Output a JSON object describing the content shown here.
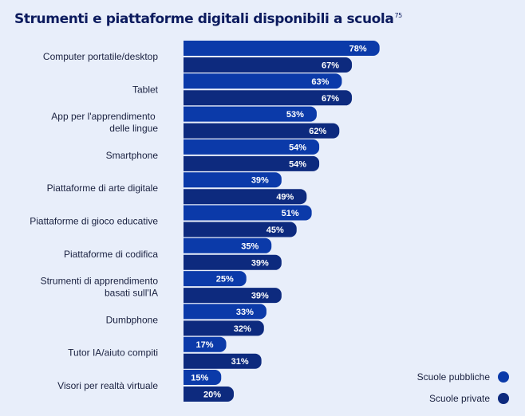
{
  "title": "Strumenti e piattaforme digitali disponibili a scuola",
  "footnote": "75",
  "colors": {
    "public": "#0b3aa9",
    "private": "#0d2a7e",
    "background": "#e8eefa"
  },
  "legend": {
    "items": [
      {
        "label": "Scuole pubbliche",
        "color": "#0b3aa9"
      },
      {
        "label": "Scuole private",
        "color": "#0d2a7e"
      }
    ],
    "placement": "bottom-right"
  },
  "chart_data": {
    "type": "bar",
    "orientation": "horizontal",
    "categories": [
      "Computer portatile/desktop",
      "Tablet",
      "App per l'apprendimento \ndelle lingue",
      "Smartphone",
      "Piattaforme di arte digitale",
      "Piattaforme di gioco educative",
      "Piattaforme di codifica",
      "Strumenti di apprendimento\nbasati sull'IA",
      "Dumbphone",
      "Tutor IA/aiuto compiti",
      "Visori per realtà virtuale"
    ],
    "series": [
      {
        "name": "Scuole pubbliche",
        "values": [
          78,
          63,
          53,
          54,
          39,
          51,
          35,
          25,
          33,
          17,
          15
        ]
      },
      {
        "name": "Scuole private",
        "values": [
          67,
          67,
          62,
          54,
          49,
          45,
          39,
          39,
          32,
          31,
          20
        ]
      }
    ],
    "value_suffix": "%",
    "xlim": [
      0,
      100
    ],
    "grid": false
  }
}
